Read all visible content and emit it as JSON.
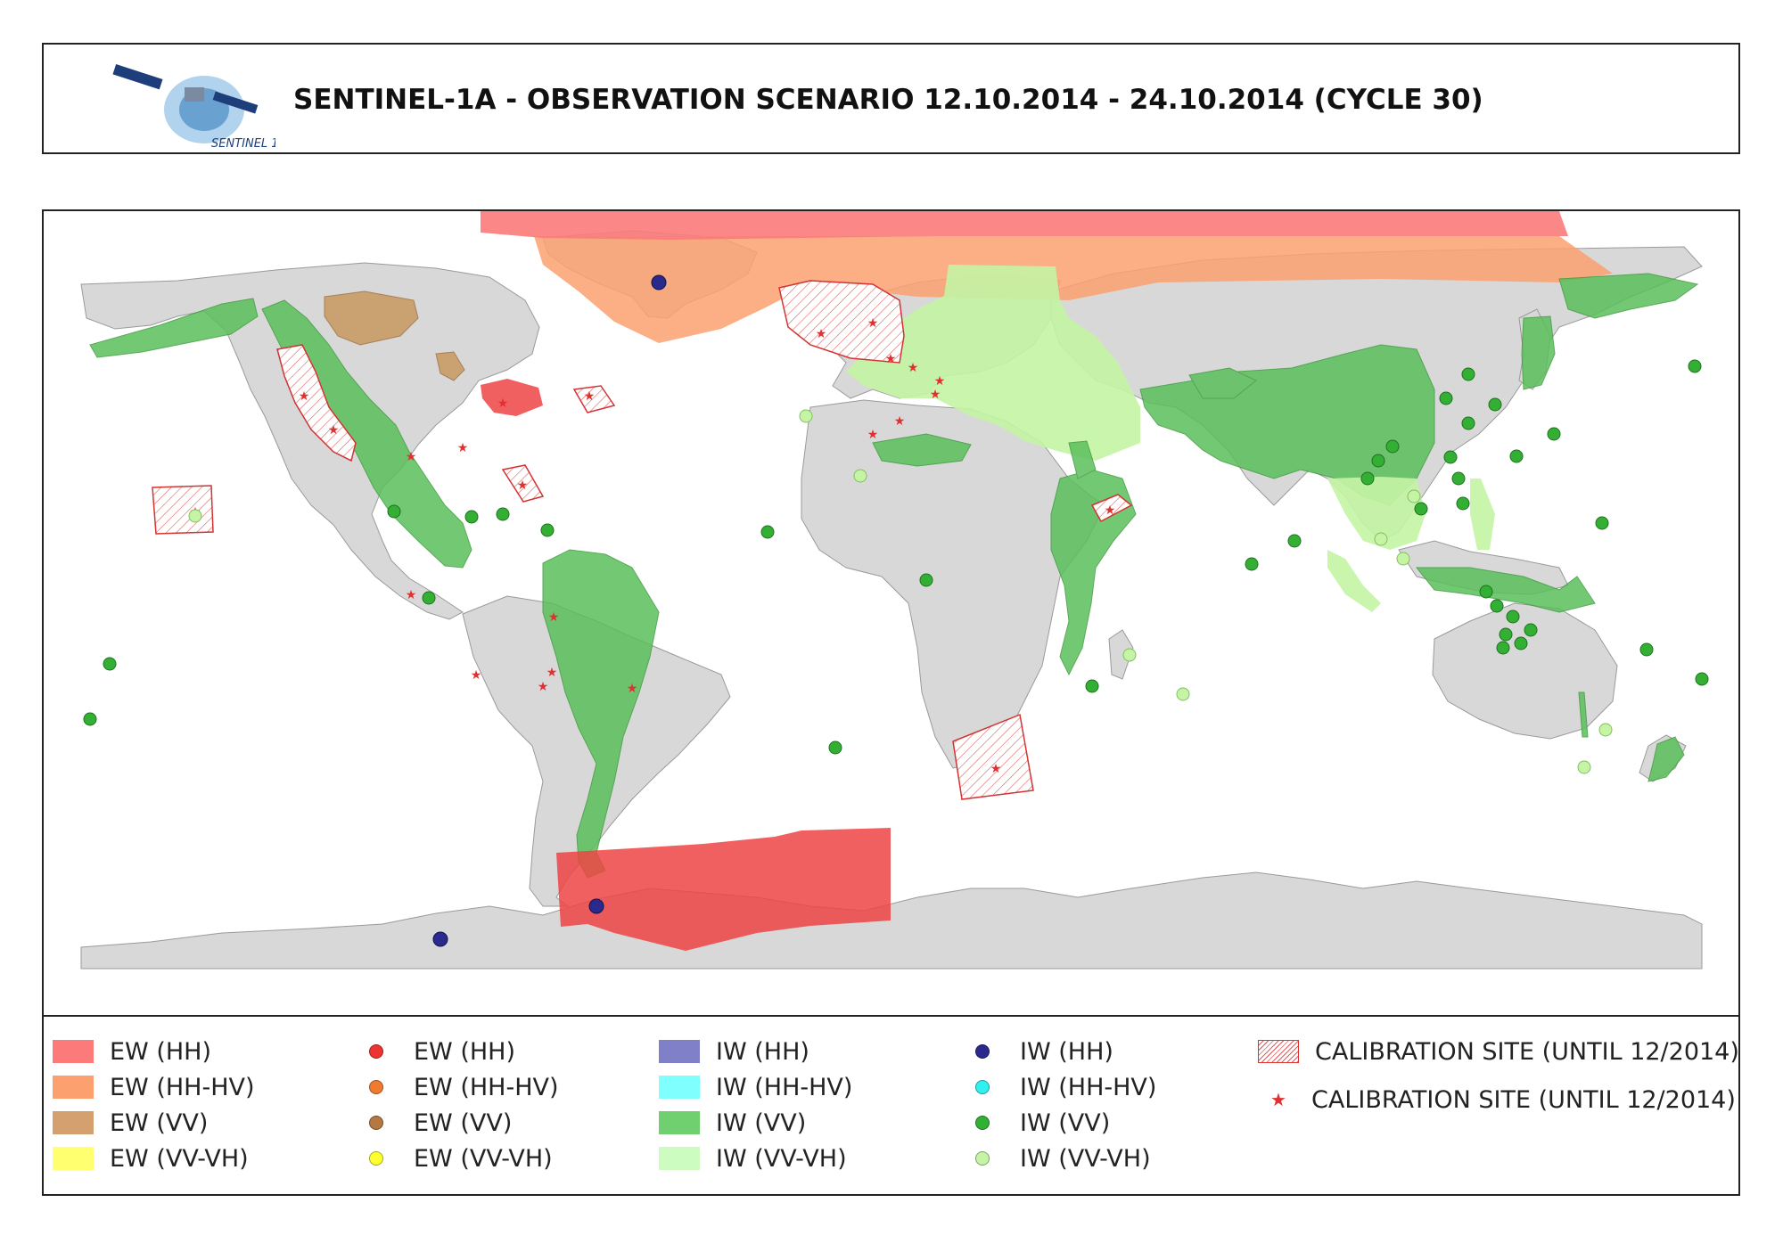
{
  "header": {
    "title": "SENTINEL-1A - OBSERVATION SCENARIO 12.10.2014 - 24.10.2014 (CYCLE 30)",
    "logo_text": "SENTINEL 1",
    "logo_icon": "satellite-icon"
  },
  "map": {
    "basemap_color": "#d8d8d8",
    "border_color": "#666666"
  },
  "legend": {
    "areas": [
      {
        "label": "EW (HH)",
        "color": "#fc7a7a"
      },
      {
        "label": "EW (HH-HV)",
        "color": "#fca070"
      },
      {
        "label": "EW (VV)",
        "color": "#d4a070"
      },
      {
        "label": "EW (VV-VH)",
        "color": "#ffff70"
      }
    ],
    "points": [
      {
        "label": "EW (HH)",
        "color": "#ee3333"
      },
      {
        "label": "EW (HH-HV)",
        "color": "#f07a30"
      },
      {
        "label": "EW (VV)",
        "color": "#b47840"
      },
      {
        "label": "EW (VV-VH)",
        "color": "#ffff30"
      }
    ],
    "iw_areas": [
      {
        "label": "IW (HH)",
        "color": "#8080c8"
      },
      {
        "label": "IW (HH-HV)",
        "color": "#80ffff"
      },
      {
        "label": "IW (VV)",
        "color": "#70d070"
      },
      {
        "label": "IW (VV-VH)",
        "color": "#ccfcc0"
      }
    ],
    "iw_points": [
      {
        "label": "IW (HH)",
        "color": "#2a2a8c"
      },
      {
        "label": "IW (HH-HV)",
        "color": "#30f0f0"
      },
      {
        "label": "IW (VV)",
        "color": "#33b033"
      },
      {
        "label": "IW (VV-VH)",
        "color": "#c4f4a4"
      }
    ],
    "calibration": [
      {
        "label": "CALIBRATION SITE (UNTIL 12/2014)",
        "symbol": "hatched-area"
      },
      {
        "label": "CALIBRATION SITE (UNTIL 12/2014)",
        "symbol": "star"
      }
    ]
  }
}
